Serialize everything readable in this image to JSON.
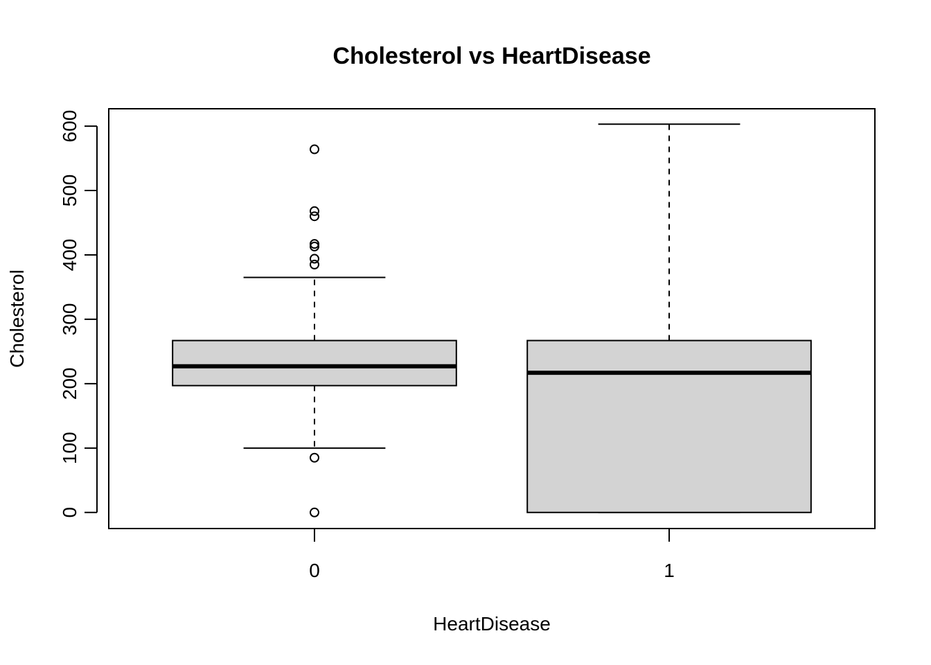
{
  "chart_data": {
    "type": "boxplot",
    "title": "Cholesterol vs HeartDisease",
    "xlabel": "HeartDisease",
    "ylabel": "Cholesterol",
    "categories": [
      "0",
      "1"
    ],
    "ylim": [
      -25,
      627
    ],
    "yticks": [
      0,
      100,
      200,
      300,
      400,
      500,
      600
    ],
    "ytick_labels": [
      "0",
      "100",
      "200",
      "300",
      "400",
      "500",
      "600"
    ],
    "box_fill": "#d3d3d3",
    "grid": false,
    "boxes": [
      {
        "category": "0",
        "whisker_low": 100,
        "q1": 197,
        "median": 227,
        "q3": 267,
        "whisker_high": 365,
        "outliers": [
          564,
          468,
          460,
          417,
          413,
          394,
          385,
          85,
          0
        ]
      },
      {
        "category": "1",
        "whisker_low": 0,
        "q1": 0,
        "median": 217,
        "q3": 267,
        "whisker_high": 603,
        "outliers": []
      }
    ]
  }
}
